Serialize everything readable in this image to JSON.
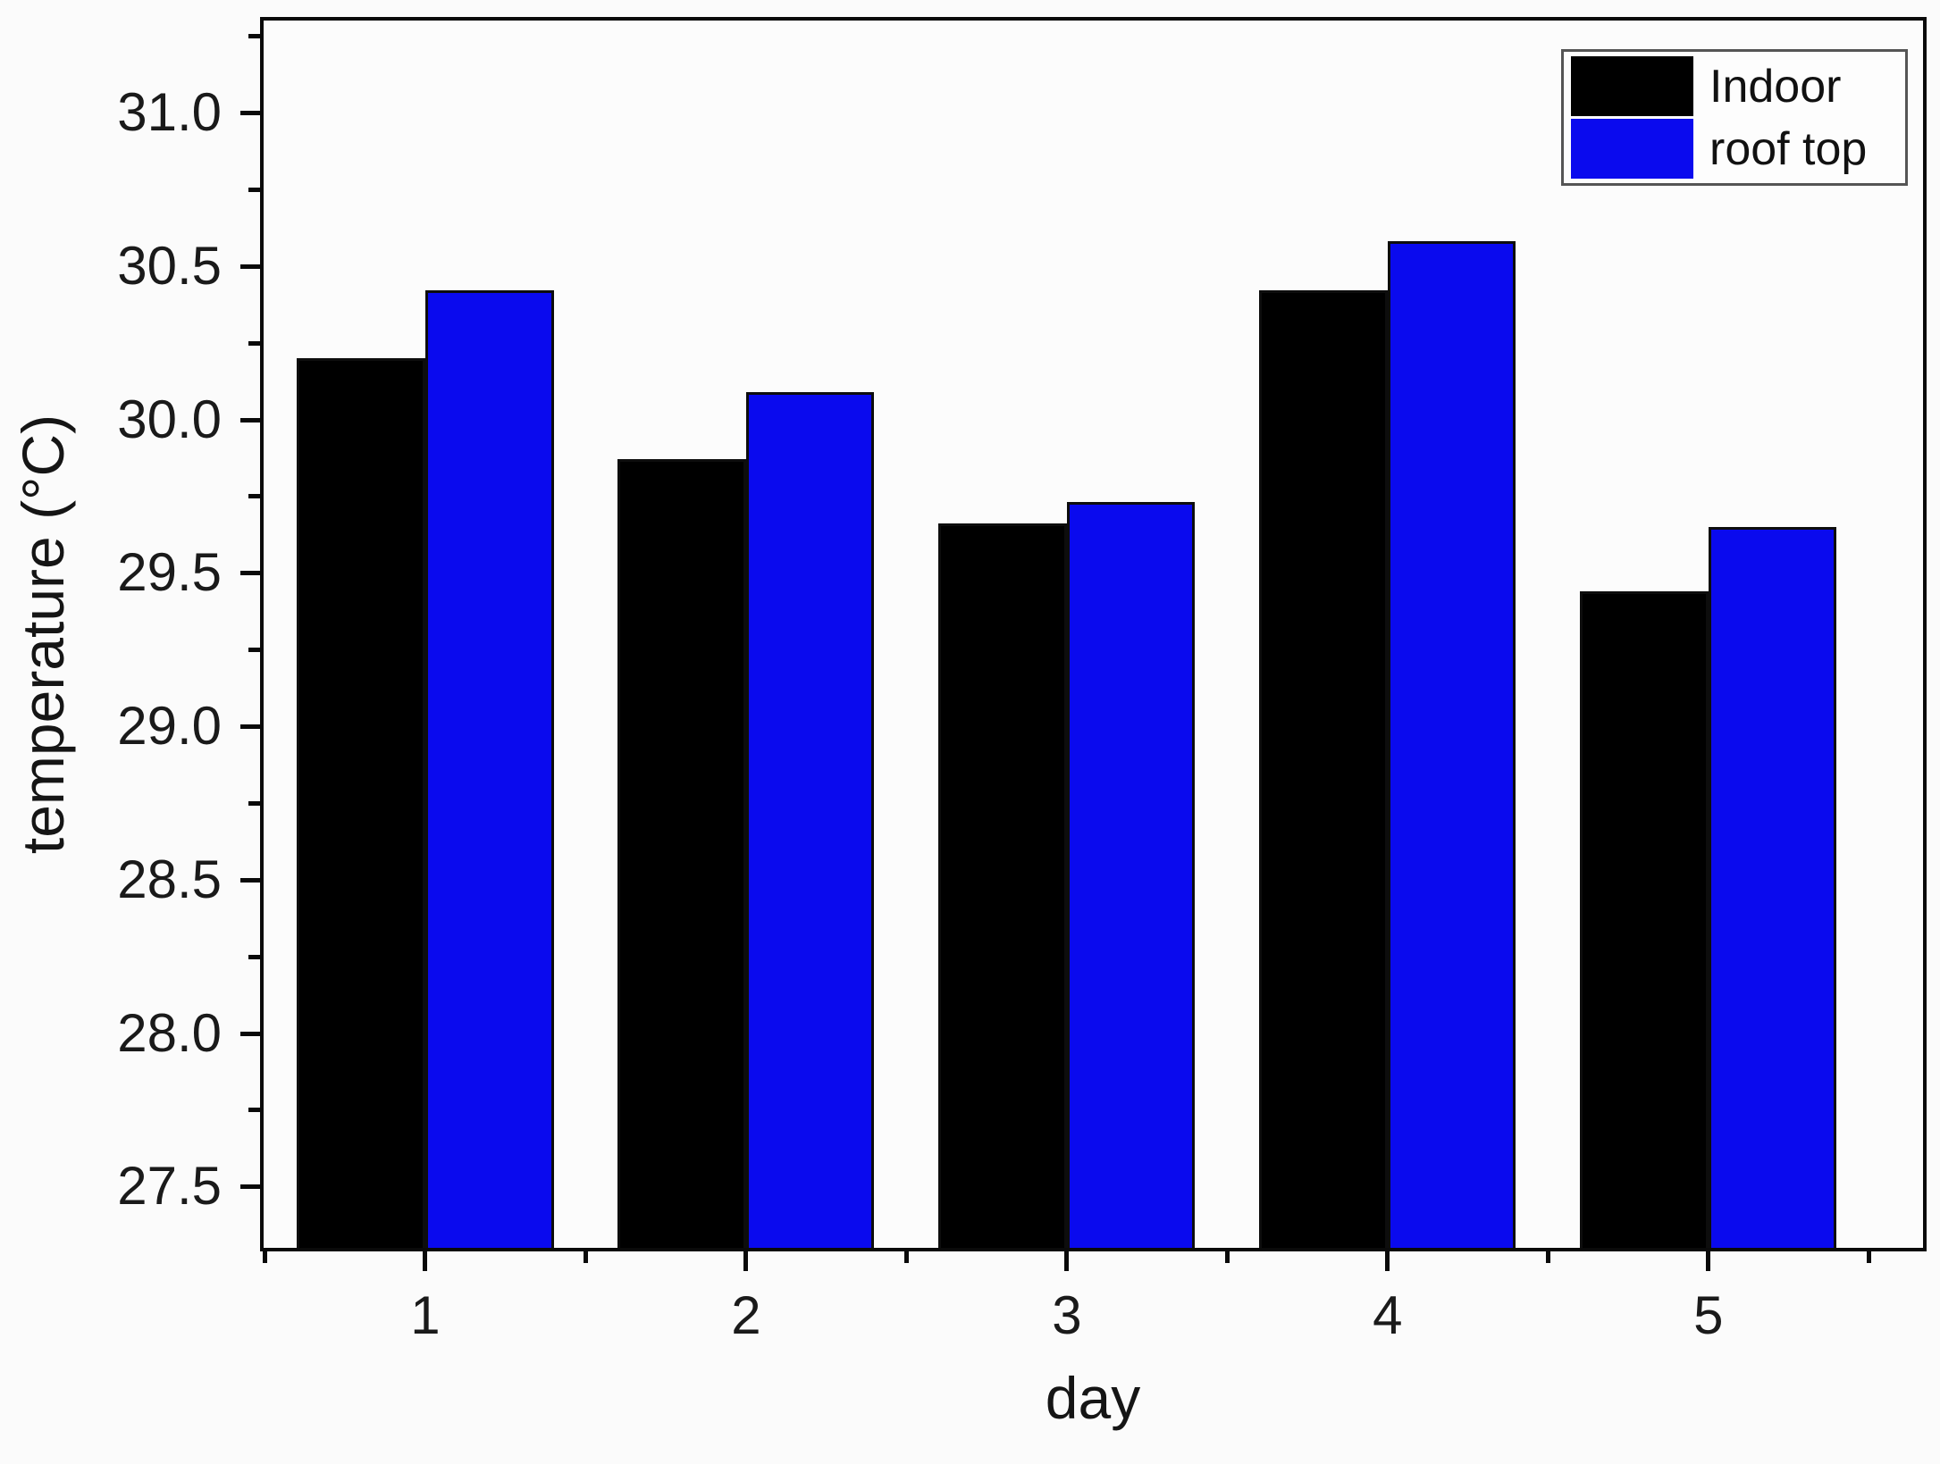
{
  "chart_data": {
    "type": "bar",
    "title": "",
    "xlabel": "day",
    "ylabel": "temperature (°C)",
    "categories": [
      "1",
      "2",
      "3",
      "4",
      "5"
    ],
    "series": [
      {
        "name": "Indoor",
        "color": "#000000",
        "values": [
          30.2,
          29.87,
          29.66,
          30.42,
          29.44
        ]
      },
      {
        "name": "roof top",
        "color": "#0a0aee",
        "values": [
          30.42,
          30.09,
          29.73,
          30.58,
          29.65
        ]
      }
    ],
    "xlim": [
      0.496,
      5.669
    ],
    "ylim": [
      27.3,
      31.3
    ],
    "y_major_ticks": [
      27.5,
      28.0,
      28.5,
      29.0,
      29.5,
      30.0,
      30.5,
      31.0
    ],
    "y_minor_ticks": [
      27.75,
      28.25,
      28.75,
      29.25,
      29.75,
      30.25,
      30.75,
      31.25
    ],
    "x_major_ticks": [
      1,
      2,
      3,
      4,
      5
    ],
    "x_minor_ticks": [
      0.5,
      1.5,
      2.5,
      3.5,
      4.5,
      5.5
    ],
    "bar_width": 0.4,
    "grid": false,
    "legend_position": "top-right",
    "axis_color": "#0a0a0a",
    "bar_edge_color": "#0d0d0d"
  },
  "legend": {
    "items": [
      {
        "label": "Indoor",
        "color": "#000000"
      },
      {
        "label": "roof top",
        "color": "#0a0aee"
      }
    ]
  }
}
